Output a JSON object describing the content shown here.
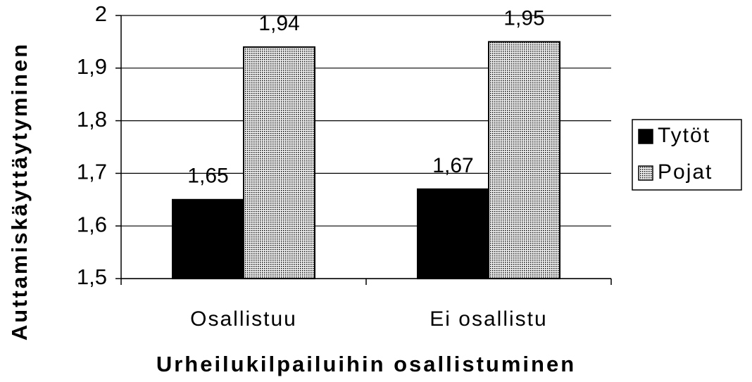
{
  "chart_data": {
    "type": "bar",
    "categories": [
      "Osallistuu",
      "Ei osallistu"
    ],
    "series": [
      {
        "name": "Tytöt",
        "color": "#000000",
        "values": [
          1.65,
          1.67
        ],
        "value_labels": [
          "1,65",
          "1,67"
        ]
      },
      {
        "name": "Pojat",
        "color": "#cfcfcf",
        "pattern": "dotted",
        "values": [
          1.94,
          1.95
        ],
        "value_labels": [
          "1,94",
          "1,95"
        ]
      }
    ],
    "ylim": [
      1.5,
      2
    ],
    "yticks": [
      {
        "value": 1.5,
        "label": "1,5"
      },
      {
        "value": 1.6,
        "label": "1,6"
      },
      {
        "value": 1.7,
        "label": "1,7"
      },
      {
        "value": 1.8,
        "label": "1,8"
      },
      {
        "value": 1.9,
        "label": "1,9"
      },
      2
    ],
    "grid": true,
    "legend": "right",
    "y_label": "Auttamiskäyttäytyminen",
    "x_label": "Urheilukilpailuihin osallistuminen"
  }
}
